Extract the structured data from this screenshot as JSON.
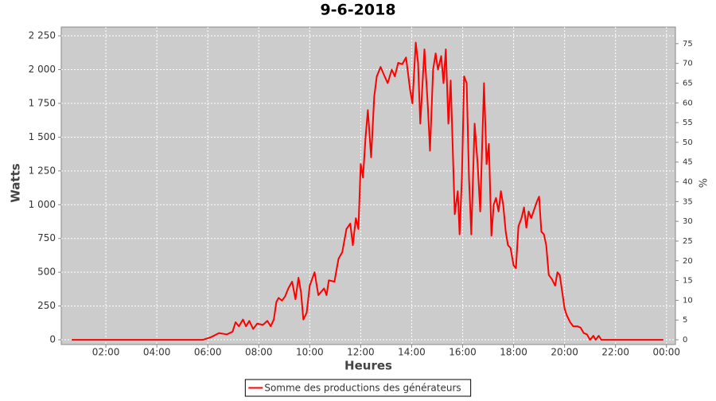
{
  "chart_data": {
    "type": "line",
    "title": "9-6-2018",
    "x_label": "Heures",
    "y_label": "Watts",
    "y2_label": "%",
    "x": [
      0.66,
      5.81,
      6.13,
      6.44,
      6.75,
      6.97,
      7.09,
      7.22,
      7.38,
      7.5,
      7.63,
      7.78,
      7.94,
      8.16,
      8.34,
      8.47,
      8.59,
      8.69,
      8.78,
      8.91,
      9.03,
      9.16,
      9.31,
      9.44,
      9.56,
      9.66,
      9.75,
      9.88,
      10.0,
      10.19,
      10.34,
      10.56,
      10.66,
      10.75,
      10.97,
      11.13,
      11.28,
      11.44,
      11.59,
      11.69,
      11.81,
      11.91,
      12.0,
      12.09,
      12.19,
      12.28,
      12.41,
      12.53,
      12.63,
      12.78,
      12.94,
      13.06,
      13.22,
      13.34,
      13.47,
      13.63,
      13.78,
      13.94,
      14.03,
      14.16,
      14.25,
      14.34,
      14.5,
      14.63,
      14.72,
      14.84,
      14.94,
      15.03,
      15.16,
      15.25,
      15.34,
      15.44,
      15.53,
      15.69,
      15.81,
      15.88,
      15.97,
      16.06,
      16.16,
      16.25,
      16.34,
      16.47,
      16.59,
      16.69,
      16.84,
      16.94,
      17.03,
      17.13,
      17.22,
      17.31,
      17.41,
      17.5,
      17.59,
      17.69,
      17.78,
      17.88,
      18.0,
      18.09,
      18.19,
      18.31,
      18.41,
      18.5,
      18.59,
      18.69,
      18.78,
      18.91,
      19.0,
      19.09,
      19.19,
      19.28,
      19.38,
      19.5,
      19.63,
      19.72,
      19.81,
      19.91,
      20.0,
      20.09,
      20.22,
      20.34,
      20.5,
      20.63,
      20.75,
      20.88,
      21.0,
      21.13,
      21.22,
      21.34,
      21.44,
      23.88
    ],
    "series": [
      {
        "name": "Somme des productions des  générateurs",
        "color": "#ff0000",
        "values": [
          0,
          0,
          20,
          50,
          40,
          60,
          130,
          100,
          150,
          100,
          140,
          80,
          120,
          110,
          140,
          100,
          150,
          280,
          310,
          290,
          320,
          380,
          430,
          300,
          460,
          350,
          150,
          200,
          400,
          500,
          330,
          380,
          330,
          440,
          430,
          600,
          650,
          820,
          860,
          700,
          900,
          820,
          1300,
          1200,
          1500,
          1700,
          1350,
          1800,
          1950,
          2020,
          1950,
          1900,
          2000,
          1950,
          2050,
          2040,
          2090,
          1850,
          1750,
          2200,
          2050,
          1600,
          2150,
          1750,
          1400,
          2000,
          2120,
          2000,
          2100,
          1900,
          2150,
          1600,
          1920,
          930,
          1100,
          780,
          1200,
          1950,
          1900,
          1200,
          780,
          1600,
          1300,
          950,
          1900,
          1300,
          1450,
          770,
          1000,
          1050,
          950,
          1100,
          1000,
          800,
          700,
          680,
          550,
          530,
          840,
          900,
          980,
          830,
          950,
          900,
          950,
          1020,
          1060,
          800,
          780,
          700,
          480,
          450,
          400,
          500,
          480,
          350,
          230,
          180,
          130,
          100,
          100,
          90,
          50,
          40,
          0,
          30,
          0,
          30,
          0,
          0
        ]
      }
    ],
    "xlim": [
      0.25,
      24.35
    ],
    "xticks": [
      {
        "value": 2,
        "label": "02:00"
      },
      {
        "value": 4,
        "label": "04:00"
      },
      {
        "value": 6,
        "label": "06:00"
      },
      {
        "value": 8,
        "label": "08:00"
      },
      {
        "value": 10,
        "label": "10:00"
      },
      {
        "value": 12,
        "label": "12:00"
      },
      {
        "value": 14,
        "label": "14:00"
      },
      {
        "value": 16,
        "label": "16:00"
      },
      {
        "value": 18,
        "label": "18:00"
      },
      {
        "value": 20,
        "label": "20:00"
      },
      {
        "value": 22,
        "label": "22:00"
      },
      {
        "value": 24,
        "label": "00:00"
      }
    ],
    "ylim": [
      -35,
      2315
    ],
    "yticks": [
      0,
      250,
      500,
      750,
      {
        "value": 1000,
        "label": "1 000"
      },
      {
        "value": 1250,
        "label": "1 250"
      },
      {
        "value": 1500,
        "label": "1 500"
      },
      {
        "value": 1750,
        "label": "1 750"
      },
      {
        "value": 2000,
        "label": "2 000"
      },
      {
        "value": 2250,
        "label": "2 250"
      }
    ],
    "y2lim": [
      -1.2,
      79.2
    ],
    "y2ticks": [
      0,
      5,
      10,
      15,
      20,
      25,
      30,
      35,
      40,
      45,
      50,
      55,
      60,
      65,
      70,
      75
    ],
    "grid": true,
    "legend": "bottom",
    "background": "#cccccc"
  }
}
